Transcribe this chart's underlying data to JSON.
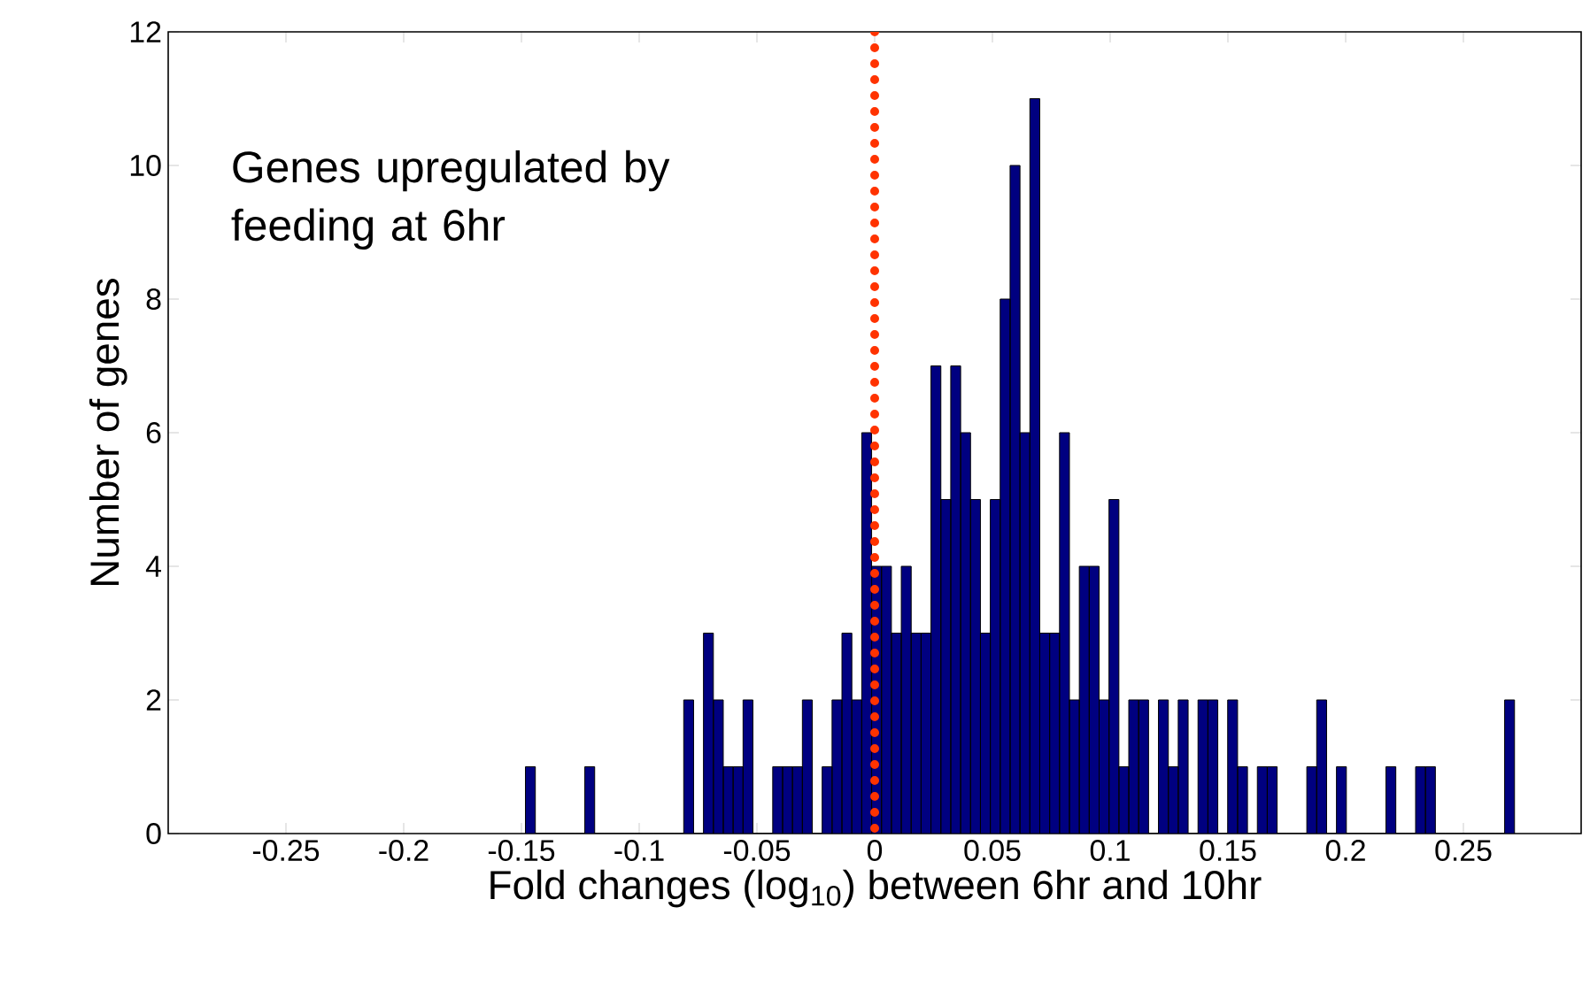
{
  "chart_data": {
    "type": "histogram",
    "xlabel": "Fold changes (log$_{10}$) between 6hr and 10hr",
    "ylabel": "Number of genes",
    "annotations": [
      "Genes upregulated by feeding at 6hr"
    ],
    "bins": [
      -0.1483,
      -0.1441,
      -0.1399,
      -0.1357,
      -0.1315,
      -0.1273,
      -0.1231,
      -0.1189,
      -0.1147,
      -0.1105,
      -0.1063,
      -0.1021,
      -0.0979,
      -0.0937,
      -0.0895,
      -0.0853,
      -0.0811,
      -0.0769,
      -0.0727,
      -0.0685,
      -0.0643,
      -0.0601,
      -0.0559,
      -0.0517,
      -0.0475,
      -0.0433,
      -0.0391,
      -0.0349,
      -0.0307,
      -0.0265,
      -0.0223,
      -0.0181,
      -0.0139,
      -0.0097,
      -0.0055,
      -0.0013,
      0.0029,
      0.0071,
      0.0113,
      0.0155,
      0.0197,
      0.0239,
      0.0281,
      0.0323,
      0.0365,
      0.0407,
      0.0449,
      0.0491,
      0.0533,
      0.0575,
      0.0617,
      0.0659,
      0.0701,
      0.0743,
      0.0785,
      0.0827,
      0.0869,
      0.0911,
      0.0953,
      0.0995,
      0.1037,
      0.1079,
      0.1121,
      0.1163,
      0.1205,
      0.1247,
      0.1289,
      0.1331,
      0.1373,
      0.1415,
      0.1457,
      0.1499,
      0.1541,
      0.1583,
      0.1625,
      0.1667,
      0.1709,
      0.1751,
      0.1793,
      0.1835,
      0.1877,
      0.1919,
      0.1961,
      0.2003,
      0.2045,
      0.2087,
      0.2129,
      0.2171,
      0.2213,
      0.2255,
      0.2297,
      0.2339,
      0.2381,
      0.2423,
      0.2465,
      0.2507,
      0.2549,
      0.2591,
      0.2633,
      0.2675,
      0.2717
    ],
    "values": [
      1,
      0,
      0,
      0,
      0,
      0,
      1,
      0,
      0,
      0,
      0,
      0,
      0,
      0,
      0,
      0,
      2,
      0,
      3,
      2,
      1,
      1,
      2,
      0,
      0,
      1,
      1,
      1,
      2,
      0,
      1,
      2,
      3,
      2,
      6,
      4,
      4,
      3,
      4,
      3,
      3,
      7,
      5,
      7,
      6,
      5,
      3,
      5,
      8,
      10,
      6,
      11,
      3,
      3,
      6,
      2,
      4,
      4,
      2,
      5,
      1,
      2,
      2,
      0,
      2,
      1,
      2,
      0,
      2,
      2,
      0,
      2,
      1,
      0,
      1,
      1,
      0,
      0,
      0,
      1,
      2,
      0,
      1,
      0,
      0,
      0,
      0,
      1,
      0,
      0,
      1,
      1,
      0,
      0,
      0,
      0,
      0,
      0,
      0,
      2
    ],
    "color": "#000080",
    "xlim": [
      -0.3,
      0.3
    ],
    "xticks": [
      -0.25,
      -0.2,
      -0.15,
      -0.1,
      -0.05,
      0,
      0.05,
      0.1,
      0.15,
      0.2,
      0.25
    ],
    "ylim": [
      0,
      12
    ],
    "yticks": [
      0,
      2,
      4,
      6,
      8,
      10,
      12
    ],
    "ref_lines": [
      {
        "axis": "x",
        "value": 0,
        "color": "#ff3300",
        "line_style": "dotted"
      }
    ],
    "grid": false
  }
}
